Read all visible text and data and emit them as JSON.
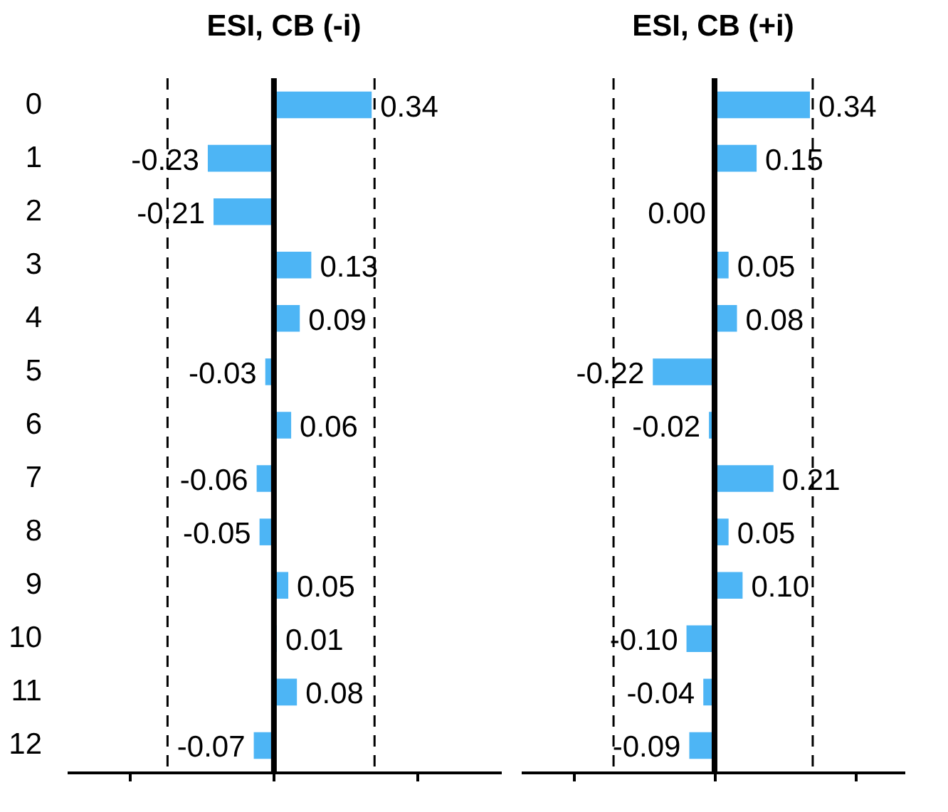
{
  "chart_data": [
    {
      "type": "bar",
      "orientation": "horizontal",
      "title": "ESI, CB (-i)",
      "categories": [
        "0",
        "1",
        "2",
        "3",
        "4",
        "5",
        "6",
        "7",
        "8",
        "9",
        "10",
        "11",
        "12"
      ],
      "values": [
        0.34,
        -0.23,
        -0.21,
        0.13,
        0.09,
        -0.03,
        0.06,
        -0.06,
        -0.05,
        0.05,
        0.01,
        0.08,
        -0.07
      ],
      "value_labels": [
        "0.34",
        "-0.23",
        "-0.21",
        "0.13",
        "0.09",
        "-0.03",
        "0.06",
        "-0.06",
        "-0.05",
        "0.05",
        "0.01",
        "0.08",
        "-0.07"
      ],
      "color": "#4db5f5",
      "xlim": [
        -0.72,
        0.79
      ],
      "xticks": [
        {
          "value": -0.5,
          "label": null
        },
        {
          "value": 0,
          "label": null
        },
        {
          "value": 0.5,
          "label": null
        }
      ],
      "ref_lines": [
        {
          "axis": "x",
          "value": 0,
          "label": null,
          "color": "#000000",
          "line_style": "solid"
        },
        {
          "axis": "x",
          "value": -0.37,
          "label": null,
          "color": "#000000",
          "line_style": "dashed"
        },
        {
          "axis": "x",
          "value": 0.35,
          "label": null,
          "color": "#000000",
          "line_style": "dashed"
        }
      ],
      "grid": false,
      "tick_labels": "y"
    },
    {
      "type": "bar",
      "orientation": "horizontal",
      "title": "ESI, CB (+i)",
      "categories": [
        "0",
        "1",
        "2",
        "3",
        "4",
        "5",
        "6",
        "7",
        "8",
        "9",
        "10",
        "11",
        "12"
      ],
      "values": [
        0.34,
        0.15,
        0.0,
        0.05,
        0.08,
        -0.22,
        -0.02,
        0.21,
        0.05,
        0.1,
        -0.1,
        -0.04,
        -0.09
      ],
      "value_labels": [
        "0.34",
        "0.15",
        "0.00",
        "0.05",
        "0.08",
        "-0.22",
        "-0.02",
        "0.21",
        "0.05",
        "0.10",
        "-0.10",
        "-0.04",
        "-0.09"
      ],
      "color": "#4db5f5",
      "xlim": [
        -0.69,
        0.68
      ],
      "xticks": [
        {
          "value": -0.5,
          "label": null
        },
        {
          "value": 0,
          "label": null
        },
        {
          "value": 0.5,
          "label": null
        }
      ],
      "ref_lines": [
        {
          "axis": "x",
          "value": 0,
          "label": null,
          "color": "#000000",
          "line_style": "solid"
        },
        {
          "axis": "x",
          "value": -0.36,
          "label": null,
          "color": "#000000",
          "line_style": "dashed"
        },
        {
          "axis": "x",
          "value": 0.35,
          "label": null,
          "color": "#000000",
          "line_style": "dashed"
        }
      ],
      "grid": false,
      "tick_labels": false
    }
  ]
}
